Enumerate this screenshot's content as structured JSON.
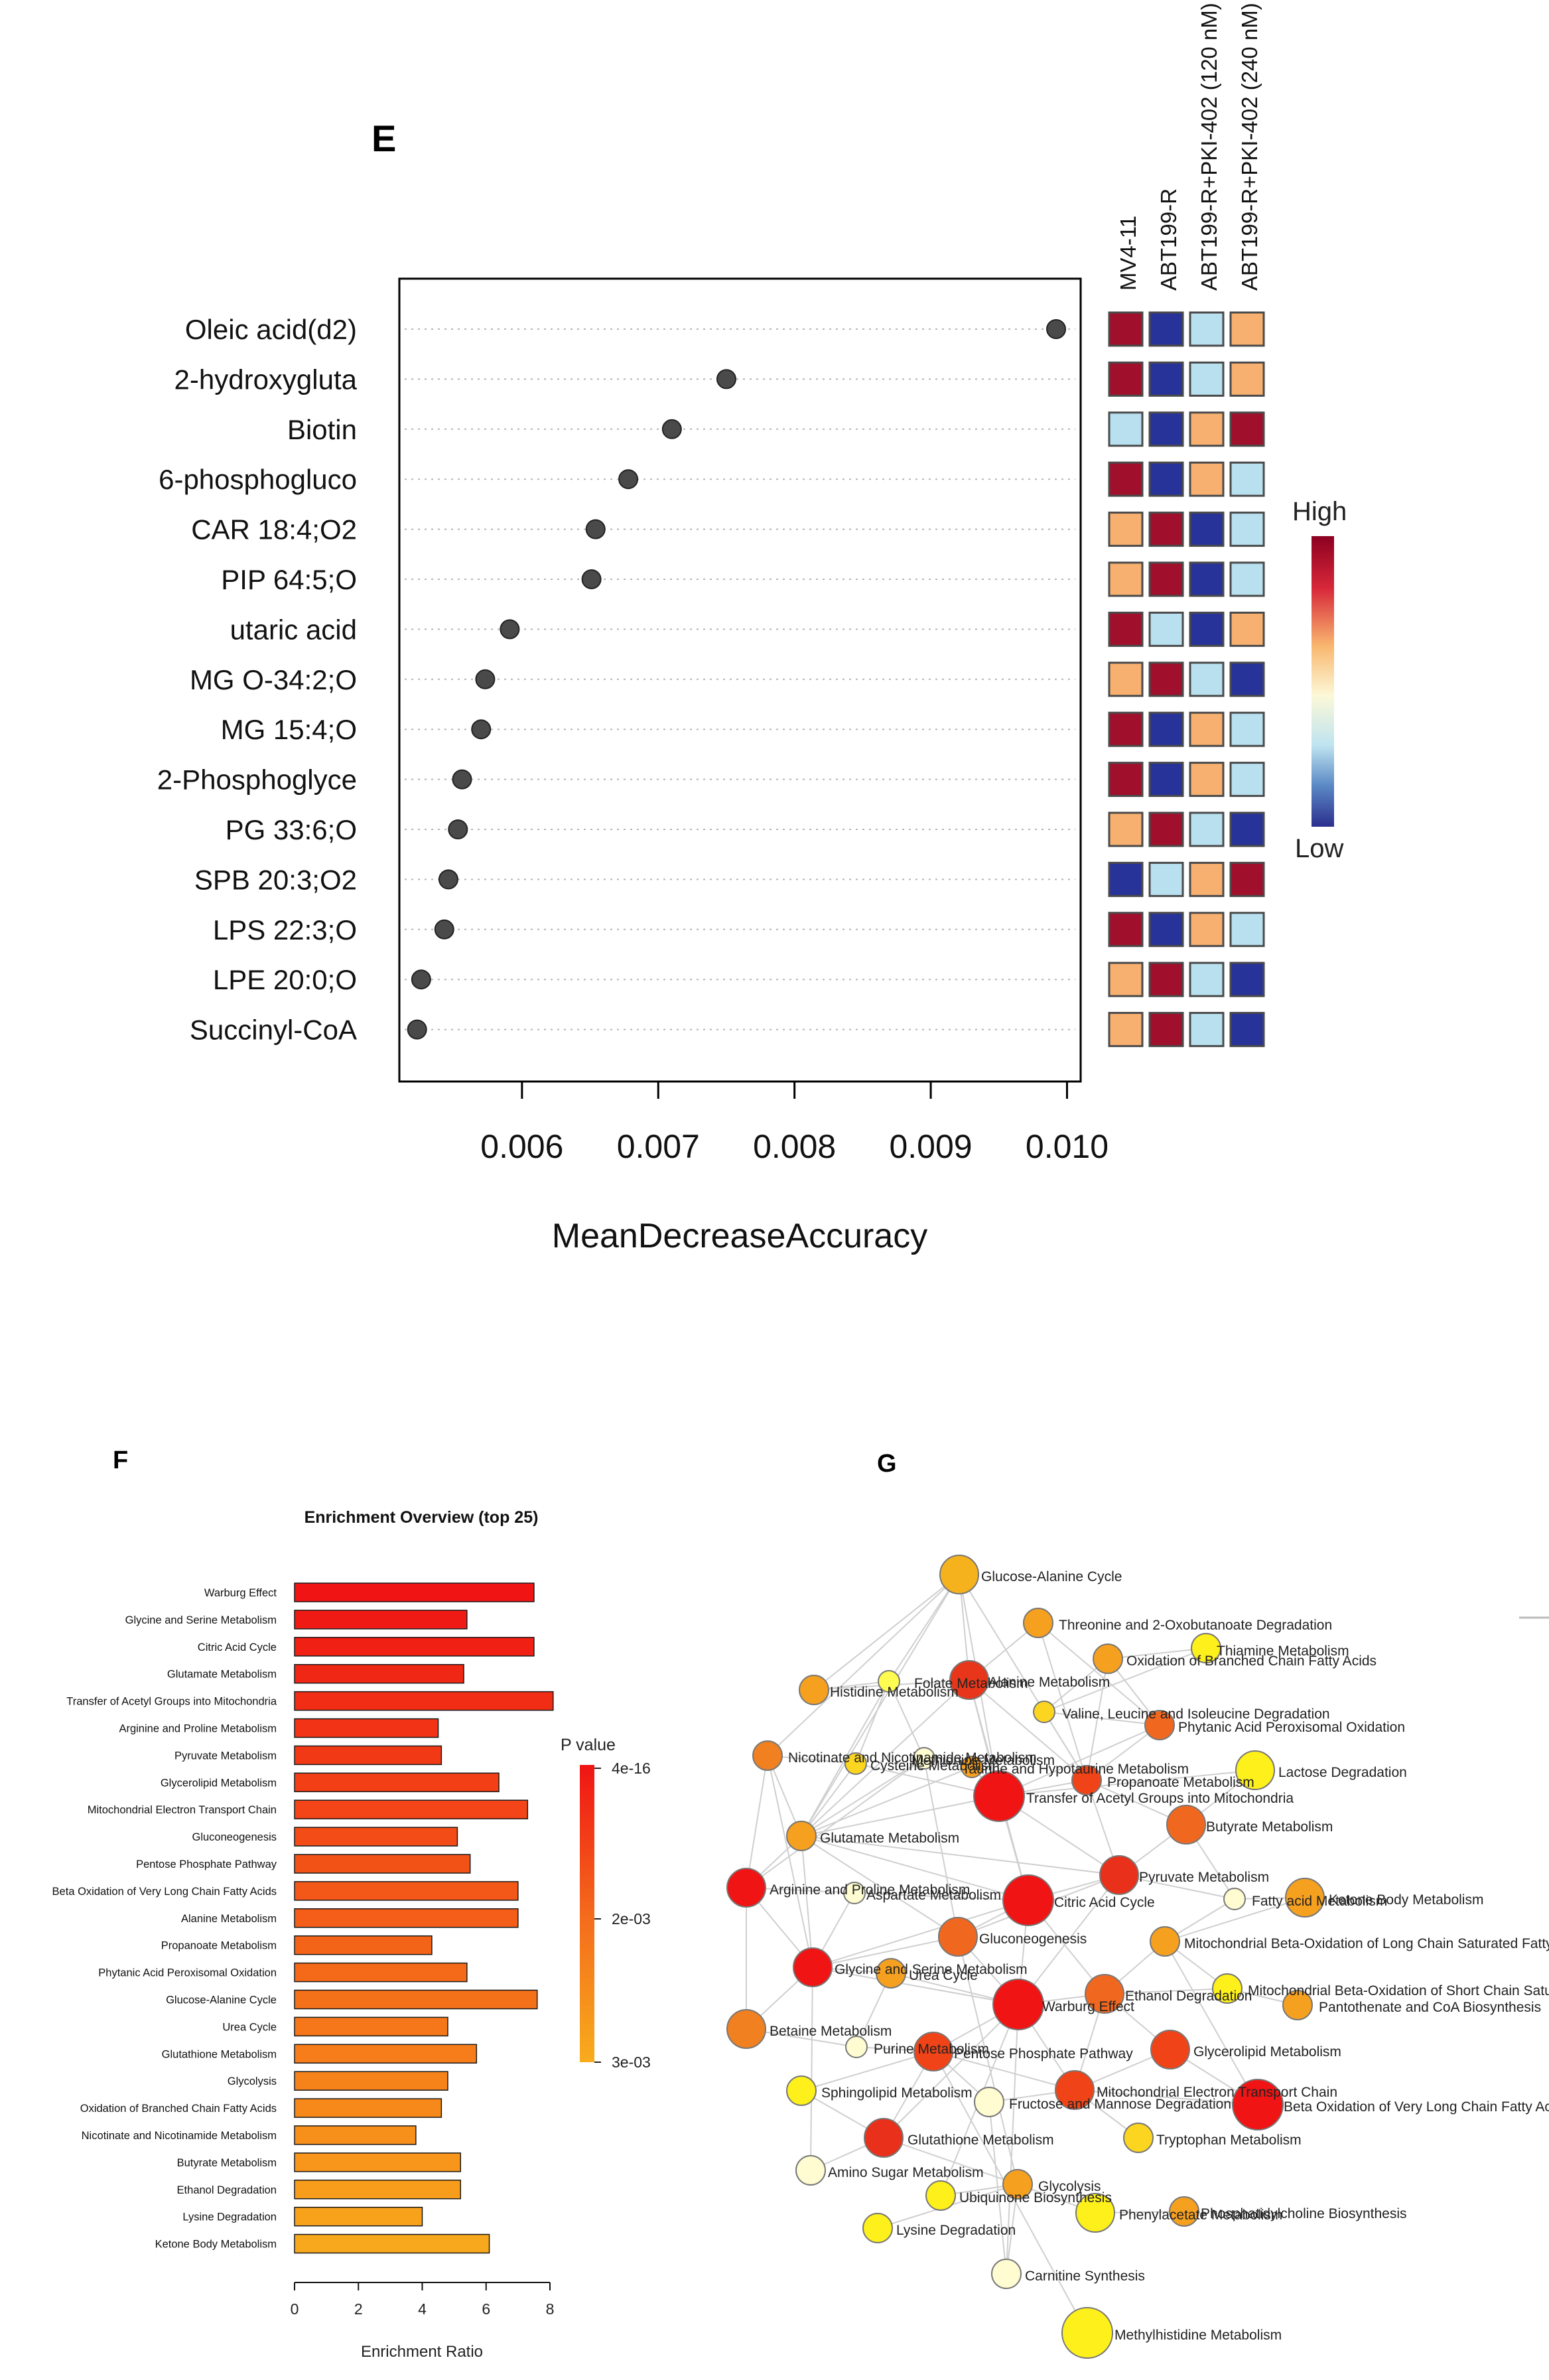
{
  "chart_data": [
    {
      "panel": "E",
      "type": "scatter",
      "variant": "dot-plot",
      "xlabel": "MeanDecreaseAccuracy",
      "xlim": [
        0.0051,
        0.0101
      ],
      "xticks": [
        0.006,
        0.007,
        0.008,
        0.009,
        0.01
      ],
      "xtick_labels": [
        "0.006",
        "0.007",
        "0.008",
        "0.009",
        "0.010"
      ],
      "grid": "dotted-horizontal",
      "features": [
        {
          "name": "Oleic acid(d2)",
          "value": 0.00992,
          "heat": [
            "High",
            "Low",
            "MidLow",
            "MidHigh"
          ]
        },
        {
          "name": "2-hydroxygluta",
          "value": 0.0075,
          "heat": [
            "High",
            "Low",
            "MidLow",
            "MidHigh"
          ]
        },
        {
          "name": "Biotin",
          "value": 0.0071,
          "heat": [
            "MidLow",
            "Low",
            "MidHigh",
            "High"
          ]
        },
        {
          "name": "6-phosphogluco",
          "value": 0.00678,
          "heat": [
            "High",
            "Low",
            "MidHigh",
            "MidLow"
          ]
        },
        {
          "name": "CAR 18:4;O2",
          "value": 0.00654,
          "heat": [
            "MidHigh",
            "High",
            "Low",
            "MidLow"
          ]
        },
        {
          "name": "PIP 64:5;O",
          "value": 0.00651,
          "heat": [
            "MidHigh",
            "High",
            "Low",
            "MidLow"
          ]
        },
        {
          "name": "utaric acid",
          "value": 0.00591,
          "heat": [
            "High",
            "MidLow",
            "Low",
            "MidHigh"
          ]
        },
        {
          "name": "MG O-34:2;O",
          "value": 0.00573,
          "heat": [
            "MidHigh",
            "High",
            "MidLow",
            "Low"
          ]
        },
        {
          "name": "MG 15:4;O",
          "value": 0.0057,
          "heat": [
            "High",
            "Low",
            "MidHigh",
            "MidLow"
          ]
        },
        {
          "name": "2-Phosphoglyce",
          "value": 0.00556,
          "heat": [
            "High",
            "Low",
            "MidHigh",
            "MidLow"
          ]
        },
        {
          "name": "PG 33:6;O",
          "value": 0.00553,
          "heat": [
            "MidHigh",
            "High",
            "MidLow",
            "Low"
          ]
        },
        {
          "name": "SPB 20:3;O2",
          "value": 0.00546,
          "heat": [
            "Low",
            "MidLow",
            "MidHigh",
            "High"
          ]
        },
        {
          "name": "LPS 22:3;O",
          "value": 0.00543,
          "heat": [
            "High",
            "Low",
            "MidHigh",
            "MidLow"
          ]
        },
        {
          "name": "LPE 20:0;O",
          "value": 0.00526,
          "heat": [
            "MidHigh",
            "High",
            "MidLow",
            "Low"
          ]
        },
        {
          "name": "Succinyl-CoA",
          "value": 0.00523,
          "heat": [
            "MidHigh",
            "High",
            "MidLow",
            "Low"
          ]
        }
      ],
      "heatmap_columns": [
        "MV4-11",
        "ABT199-R",
        "ABT199-R+PKI-402 (120 nM)",
        "ABT199-R+PKI-402 (240 nM)"
      ],
      "heat_levels": {
        "High": "#a0102c",
        "MidHigh": "#f7b070",
        "MidLow": "#b8e0ef",
        "Low": "#28339a"
      },
      "legend": {
        "high_label": "High",
        "low_label": "Low",
        "placement": "right"
      },
      "colors": {
        "dot": "#4a4a4a"
      }
    },
    {
      "panel": "F",
      "type": "bar",
      "orientation": "horizontal",
      "title": "Enrichment Overview (top 25)",
      "xlabel": "Enrichment Ratio",
      "xlim": [
        0,
        8
      ],
      "xticks": [
        0,
        2,
        4,
        6,
        8
      ],
      "categories": [
        "Warburg Effect",
        "Glycine and Serine Metabolism",
        "Citric Acid Cycle",
        "Glutamate Metabolism",
        "Transfer of Acetyl Groups into Mitochondria",
        "Arginine and Proline Metabolism",
        "Pyruvate Metabolism",
        "Glycerolipid Metabolism",
        "Mitochondrial Electron Transport Chain",
        "Gluconeogenesis",
        "Pentose Phosphate Pathway",
        "Beta Oxidation of Very Long Chain Fatty Acids",
        "Alanine Metabolism",
        "Propanoate Metabolism",
        "Phytanic Acid Peroxisomal Oxidation",
        "Glucose-Alanine Cycle",
        "Urea Cycle",
        "Glutathione Metabolism",
        "Glycolysis",
        "Oxidation of Branched Chain Fatty Acids",
        "Nicotinate and Nicotinamide Metabolism",
        "Butyrate Metabolism",
        "Ethanol Degradation",
        "Lysine Degradation",
        "Ketone Body Metabolism"
      ],
      "values": [
        7.5,
        5.4,
        7.5,
        5.3,
        8.1,
        4.5,
        4.6,
        6.4,
        7.3,
        5.1,
        5.5,
        7.0,
        7.0,
        4.3,
        5.4,
        7.6,
        4.8,
        5.7,
        4.8,
        4.6,
        3.8,
        5.2,
        5.2,
        4.0,
        6.1
      ],
      "legend": {
        "title": "P value",
        "labels": [
          "4e-16",
          "2e-03",
          "3e-03"
        ],
        "placement": "right"
      },
      "colors": {
        "top": "#f01414",
        "bottom": "#f8a81c"
      }
    },
    {
      "panel": "G",
      "type": "network",
      "nodes": [
        {
          "label": "Glucose-Alanine Cycle",
          "color": "#f6b21c",
          "size": 3
        },
        {
          "label": "Threonine and 2-Oxobutanoate Degradation",
          "color": "#f6a020",
          "size": 2
        },
        {
          "label": "Oxidation of Branched Chain Fatty Acids",
          "color": "#f6a020",
          "size": 2
        },
        {
          "label": "Thiamine Metabolism",
          "color": "#fef01a",
          "size": 2
        },
        {
          "label": "Histidine Metabolism",
          "color": "#f6a020",
          "size": 2
        },
        {
          "label": "Folate Metabolism",
          "color": "#fefc50",
          "size": 1
        },
        {
          "label": "Alanine Metabolism",
          "color": "#e8361a",
          "size": 3
        },
        {
          "label": "Valine, Leucine and Isoleucine Degradation",
          "color": "#fcd520",
          "size": 1
        },
        {
          "label": "Phytanic Acid Peroxisomal Oxidation",
          "color": "#f06820",
          "size": 2
        },
        {
          "label": "Nicotinate and Nicotinamide Metabolism",
          "color": "#f08020",
          "size": 2
        },
        {
          "label": "Cysteine Metabolism",
          "color": "#fcd520",
          "size": 1
        },
        {
          "label": "Methionine Metabolism",
          "color": "#fefcd0",
          "size": 1
        },
        {
          "label": "Taurine and Hypotaurine Metabolism",
          "color": "#f6a020",
          "size": 1
        },
        {
          "label": "Propanoate Metabolism",
          "color": "#f04418",
          "size": 2
        },
        {
          "label": "Lactose Degradation",
          "color": "#fef01a",
          "size": 3
        },
        {
          "label": "Transfer of Acetyl Groups into Mitochondria",
          "color": "#f01414",
          "size": 4
        },
        {
          "label": "Butyrate Metabolism",
          "color": "#f06820",
          "size": 3
        },
        {
          "label": "Glutamate Metabolism",
          "color": "#f6a020",
          "size": 2
        },
        {
          "label": "Pyruvate Metabolism",
          "color": "#e8301a",
          "size": 3
        },
        {
          "label": "Arginine and Proline Metabolism",
          "color": "#f01414",
          "size": 3
        },
        {
          "label": "Aspartate Metabolism",
          "color": "#fefcd0",
          "size": 1
        },
        {
          "label": "Citric Acid Cycle",
          "color": "#f01414",
          "size": 4
        },
        {
          "label": "Fatty acid Metabolism",
          "color": "#fefcd0",
          "size": 1
        },
        {
          "label": "Ketone Body Metabolism",
          "color": "#f6a020",
          "size": 3
        },
        {
          "label": "Gluconeogenesis",
          "color": "#f06820",
          "size": 3
        },
        {
          "label": "Mitochondrial Beta-Oxidation of Long Chain Saturated Fatty Acids",
          "color": "#f6a020",
          "size": 2
        },
        {
          "label": "Glycine and Serine Metabolism",
          "color": "#f01414",
          "size": 3
        },
        {
          "label": "Urea Cycle",
          "color": "#f6a020",
          "size": 2
        },
        {
          "label": "Mitochondrial Beta-Oxidation of Short Chain Saturated Fatty Acids",
          "color": "#fef01a",
          "size": 2
        },
        {
          "label": "Betaine Metabolism",
          "color": "#f08020",
          "size": 3
        },
        {
          "label": "Warburg Effect",
          "color": "#f01414",
          "size": 4
        },
        {
          "label": "Ethanol Degradation",
          "color": "#f06820",
          "size": 3
        },
        {
          "label": "Pantothenate and CoA Biosynthesis",
          "color": "#f6a020",
          "size": 2
        },
        {
          "label": "Purine Metabolism",
          "color": "#fefcd0",
          "size": 1
        },
        {
          "label": "Pentose Phosphate Pathway",
          "color": "#f04418",
          "size": 3
        },
        {
          "label": "Glycerolipid Metabolism",
          "color": "#f04418",
          "size": 3
        },
        {
          "label": "Sphingolipid Metabolism",
          "color": "#fef01a",
          "size": 2
        },
        {
          "label": "Fructose and Mannose Degradation",
          "color": "#fefcd0",
          "size": 2
        },
        {
          "label": "Mitochondrial Electron Transport Chain",
          "color": "#f04418",
          "size": 3
        },
        {
          "label": "Beta Oxidation of Very Long Chain Fatty Acids",
          "color": "#f01414",
          "size": 4
        },
        {
          "label": "Glutathione Metabolism",
          "color": "#e8301a",
          "size": 3
        },
        {
          "label": "Tryptophan Metabolism",
          "color": "#fcd520",
          "size": 2
        },
        {
          "label": "Amino Sugar Metabolism",
          "color": "#fefcd0",
          "size": 2
        },
        {
          "label": "Glycolysis",
          "color": "#f6a020",
          "size": 2
        },
        {
          "label": "Ubiquinone Biosynthesis",
          "color": "#fef01a",
          "size": 2
        },
        {
          "label": "Phenylacetate Metabolism",
          "color": "#fef01a",
          "size": 3
        },
        {
          "label": "Phosphatidylcholine Biosynthesis",
          "color": "#f6a020",
          "size": 2
        },
        {
          "label": "Lysine Degradation",
          "color": "#fef01a",
          "size": 2
        },
        {
          "label": "Carnitine Synthesis",
          "color": "#fefcd0",
          "size": 2
        },
        {
          "label": "Methylhistidine Metabolism",
          "color": "#fef01a",
          "size": 4
        }
      ],
      "edges": [
        [
          0,
          6
        ],
        [
          0,
          5
        ],
        [
          0,
          4
        ],
        [
          0,
          9
        ],
        [
          0,
          17
        ],
        [
          0,
          15
        ],
        [
          0,
          13
        ],
        [
          1,
          13
        ],
        [
          1,
          6
        ],
        [
          1,
          8
        ],
        [
          2,
          8
        ],
        [
          2,
          7
        ],
        [
          2,
          13
        ],
        [
          3,
          7
        ],
        [
          3,
          2
        ],
        [
          4,
          6
        ],
        [
          4,
          5
        ],
        [
          5,
          17
        ],
        [
          5,
          11
        ],
        [
          5,
          10
        ],
        [
          6,
          17
        ],
        [
          6,
          15
        ],
        [
          6,
          13
        ],
        [
          6,
          21
        ],
        [
          7,
          8
        ],
        [
          7,
          13
        ],
        [
          8,
          15
        ],
        [
          8,
          13
        ],
        [
          9,
          17
        ],
        [
          9,
          10
        ],
        [
          9,
          19
        ],
        [
          10,
          17
        ],
        [
          10,
          15
        ],
        [
          11,
          17
        ],
        [
          11,
          19
        ],
        [
          12,
          15
        ],
        [
          12,
          17
        ],
        [
          13,
          15
        ],
        [
          13,
          16
        ],
        [
          13,
          18
        ],
        [
          14,
          16
        ],
        [
          14,
          15
        ],
        [
          15,
          17
        ],
        [
          15,
          18
        ],
        [
          15,
          21
        ],
        [
          16,
          18
        ],
        [
          16,
          22
        ],
        [
          17,
          18
        ],
        [
          17,
          21
        ],
        [
          17,
          19
        ],
        [
          17,
          24
        ],
        [
          17,
          26
        ],
        [
          18,
          21
        ],
        [
          18,
          24
        ],
        [
          18,
          30
        ],
        [
          18,
          22
        ],
        [
          19,
          20
        ],
        [
          19,
          26
        ],
        [
          19,
          29
        ],
        [
          20,
          21
        ],
        [
          20,
          26
        ],
        [
          21,
          24
        ],
        [
          21,
          30
        ],
        [
          21,
          31
        ],
        [
          21,
          26
        ],
        [
          22,
          23
        ],
        [
          22,
          25
        ],
        [
          23,
          25
        ],
        [
          24,
          26
        ],
        [
          24,
          30
        ],
        [
          25,
          28
        ],
        [
          25,
          31
        ],
        [
          26,
          27
        ],
        [
          26,
          29
        ],
        [
          26,
          30
        ],
        [
          27,
          30
        ],
        [
          27,
          33
        ],
        [
          28,
          31
        ],
        [
          28,
          32
        ],
        [
          29,
          33
        ],
        [
          30,
          31
        ],
        [
          30,
          34
        ],
        [
          30,
          38
        ],
        [
          30,
          40
        ],
        [
          31,
          35
        ],
        [
          31,
          38
        ],
        [
          32,
          28
        ],
        [
          33,
          34
        ],
        [
          34,
          36
        ],
        [
          34,
          37
        ],
        [
          34,
          38
        ],
        [
          34,
          40
        ],
        [
          35,
          38
        ],
        [
          35,
          39
        ],
        [
          36,
          40
        ],
        [
          37,
          38
        ],
        [
          38,
          39
        ],
        [
          38,
          41
        ],
        [
          40,
          42
        ],
        [
          40,
          43
        ],
        [
          43,
          44
        ],
        [
          43,
          45
        ],
        [
          43,
          47
        ],
        [
          45,
          46
        ],
        [
          43,
          48
        ],
        [
          39,
          25
        ],
        [
          37,
          48
        ],
        [
          41,
          38
        ],
        [
          30,
          44
        ],
        [
          24,
          43
        ],
        [
          34,
          49
        ],
        [
          48,
          30
        ],
        [
          42,
          26
        ],
        [
          11,
          24
        ],
        [
          9,
          26
        ]
      ]
    }
  ],
  "panels": {
    "e": "E",
    "f": "F",
    "g": "G"
  }
}
